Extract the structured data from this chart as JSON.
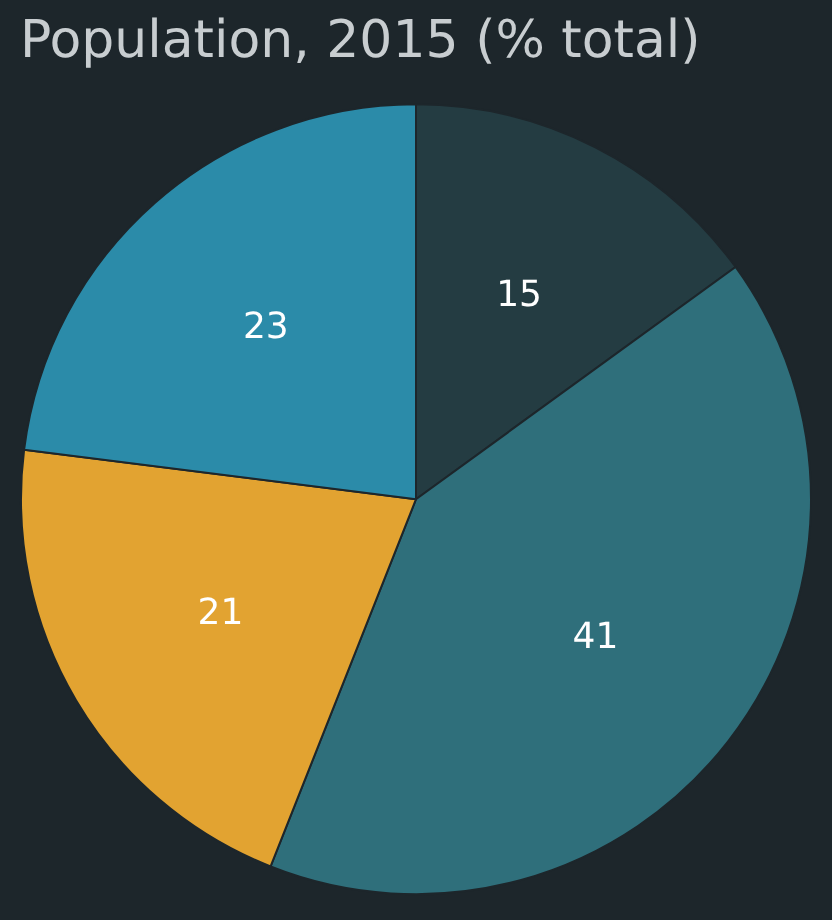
{
  "chart_data": {
    "type": "pie",
    "title": "Population, 2015 (% total)",
    "categories": [
      null,
      null,
      null,
      null
    ],
    "values": [
      15,
      41,
      21,
      23
    ],
    "colors": [
      "#243c42",
      "#2f6f7b",
      "#e2a331",
      "#2b8ba9"
    ],
    "data_labels": true
  }
}
